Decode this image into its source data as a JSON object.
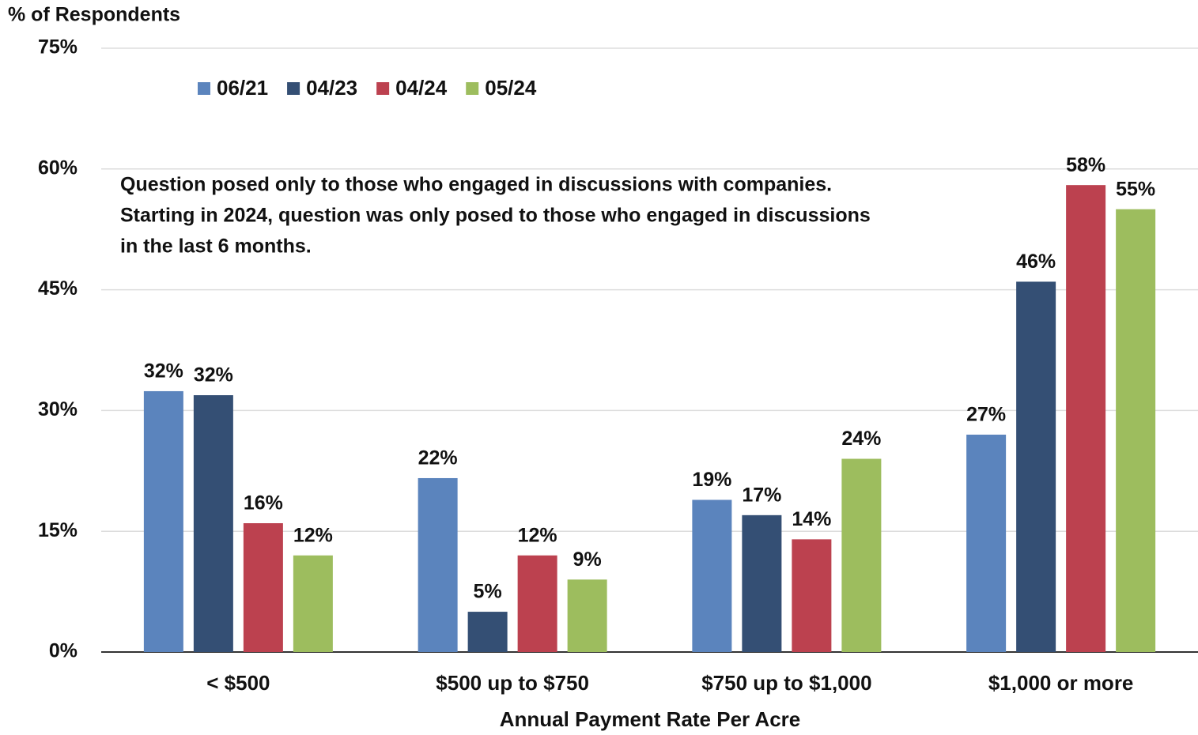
{
  "chart_data": {
    "type": "bar",
    "y_label": "% of Respondents",
    "x_label": "Annual Payment Rate Per Acre",
    "annotation": [
      "Question posed only to those who engaged  in discussions with companies.",
      "Starting in 2024, question was only posed to those who engaged in discussions",
      "in the last 6 months."
    ],
    "categories": [
      "< $500",
      "$500 up to $750",
      "$750 up to $1,000",
      "$1,000 or more"
    ],
    "series": [
      {
        "name": "06/21",
        "color": "#5b84bd",
        "values": [
          32.4,
          21.6,
          18.9,
          27
        ],
        "value_labels": [
          "32%",
          "22%",
          "19%",
          "27%"
        ]
      },
      {
        "name": "04/23",
        "color": "#344f74",
        "values": [
          31.9,
          5,
          17,
          46
        ],
        "value_labels": [
          "32%",
          "5%",
          "17%",
          "46%"
        ]
      },
      {
        "name": "04/24",
        "color": "#bc414f",
        "values": [
          16,
          12,
          14,
          58
        ],
        "value_labels": [
          "16%",
          "12%",
          "14%",
          "58%"
        ]
      },
      {
        "name": "05/24",
        "color": "#9dbd5e",
        "values": [
          12,
          9,
          24,
          55
        ],
        "value_labels": [
          "12%",
          "9%",
          "24%",
          "55%"
        ]
      }
    ],
    "ylim": [
      0,
      75
    ],
    "yticks": [
      {
        "value": 0,
        "label": "0%"
      },
      {
        "value": 15,
        "label": "15%"
      },
      {
        "value": 30,
        "label": "30%"
      },
      {
        "value": 45,
        "label": "45%"
      },
      {
        "value": 60,
        "label": "60%"
      },
      {
        "value": 75,
        "label": "75%"
      }
    ],
    "grid": true,
    "legend": "top-left"
  }
}
